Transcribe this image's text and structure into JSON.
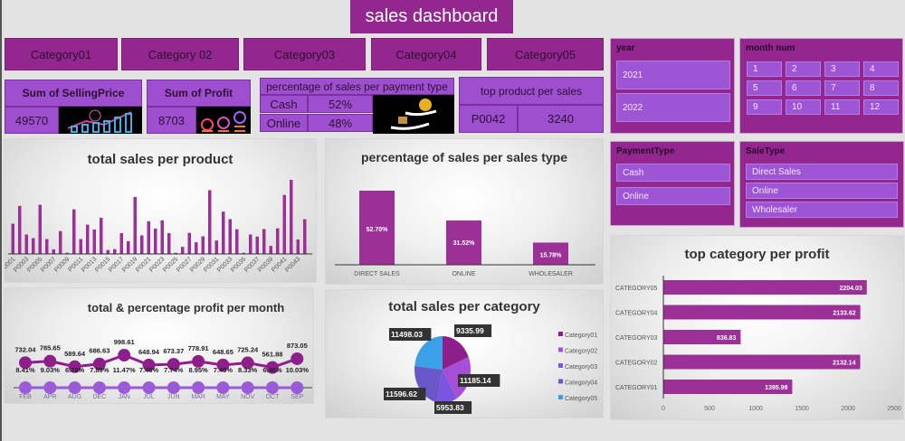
{
  "title": "sales dashboard",
  "categories": [
    "Category01",
    "Category 02",
    "Category03",
    "Category04",
    "Category05"
  ],
  "kpi": {
    "selling_label": "Sum of SellingPrice",
    "selling_value": "49570",
    "selling_icon": "growth-chart-icon",
    "profit_label": "Sum of Profit",
    "profit_value": "8703",
    "profit_icon": "coin-stacks-icon",
    "payment_label": "percentage of sales  per payment type",
    "payment_rows": [
      {
        "type": "Cash",
        "pct": "52%"
      },
      {
        "type": "Online",
        "pct": "48%"
      }
    ],
    "payment_icon": "hands-money-icon",
    "top_label": "top product per sales",
    "top_product": "P0042",
    "top_value": "3240"
  },
  "slicers": {
    "year": {
      "label": "year",
      "items": [
        "2021",
        "2022"
      ]
    },
    "month": {
      "label": "month num",
      "items": [
        "1",
        "2",
        "3",
        "4",
        "5",
        "6",
        "7",
        "8",
        "9",
        "10",
        "11",
        "12"
      ]
    },
    "payment": {
      "label": "PaymentType",
      "items": [
        "Cash",
        "Online"
      ]
    },
    "saletype": {
      "label": "SaleType",
      "items": [
        "Direct Sales",
        "Online",
        "Wholesaler"
      ]
    }
  },
  "colors": {
    "accent": "#93278f",
    "light": "#9d4fd0",
    "bar": "#9b3196"
  },
  "chart_data": [
    {
      "id": "product",
      "type": "bar",
      "title": "total sales per product",
      "categories": [
        "P0001",
        "P0002",
        "P0003",
        "P0004",
        "P0005",
        "P0006",
        "P0007",
        "P0008",
        "P0009",
        "P0010",
        "P0011",
        "P0012",
        "P0013",
        "P0014",
        "P0015",
        "P0016",
        "P0017",
        "P0018",
        "P0019",
        "P0020",
        "P0021",
        "P0022",
        "P0023",
        "P0024",
        "P0025",
        "P0026",
        "P0027",
        "P0028",
        "P0029",
        "P0030",
        "P0031",
        "P0032",
        "P0033",
        "P0034",
        "P0035",
        "P0036",
        "P0037",
        "P0038",
        "P0039",
        "P0040",
        "P0041",
        "P0042",
        "P0043",
        "P0044"
      ],
      "tick_labels": [
        "P0001",
        "P0003",
        "P0005",
        "P0007",
        "P0009",
        "P0011",
        "P0013",
        "P0015",
        "P0017",
        "P0019",
        "P0021",
        "P0023",
        "P0025",
        "P0027",
        "P0029",
        "P0031",
        "P0033",
        "P0035",
        "P0037",
        "P0039",
        "P0041",
        "P0043"
      ],
      "values": [
        1320,
        2100,
        850,
        690,
        2150,
        650,
        200,
        1000,
        50,
        1950,
        650,
        1280,
        1070,
        1580,
        170,
        210,
        910,
        560,
        2490,
        810,
        1430,
        1110,
        1470,
        910,
        50,
        310,
        920,
        510,
        770,
        2790,
        590,
        1850,
        1520,
        1080,
        50,
        850,
        760,
        1090,
        350,
        1120,
        2580,
        3240,
        630,
        1520
      ]
    },
    {
      "id": "saletype",
      "type": "bar",
      "title": "percentage of sales  per sales type",
      "categories": [
        "DIRECT SALES",
        "ONLINE",
        "WHOLESALER"
      ],
      "values": [
        52.7,
        31.52,
        15.78
      ],
      "labels": [
        "52.70%",
        "31.52%",
        "15.78%"
      ]
    },
    {
      "id": "catprofit",
      "type": "bar",
      "orientation": "horizontal",
      "title": "top category  per profit",
      "categories": [
        "CATEGORY05",
        "CATEGORY04",
        "CATEGORY03",
        "CATEGORY02",
        "CATEGORY01"
      ],
      "values": [
        2204.03,
        2133.62,
        836.83,
        2132.14,
        1395.99
      ],
      "labels": [
        "2204.03",
        "2133.62",
        "836.83",
        "2132.14",
        "1395.99"
      ],
      "xlim": [
        0,
        2500
      ],
      "xticks": [
        "0",
        "500",
        "1000",
        "1500",
        "2000",
        "2500"
      ]
    },
    {
      "id": "monthprofit",
      "type": "line",
      "title": "total & percentage  profit per month",
      "categories": [
        "FEB",
        "APR",
        "AUG",
        "DEC",
        "JAN",
        "JUL",
        "JUN",
        "MAR",
        "MAY",
        "NOV",
        "OCT",
        "SEP"
      ],
      "series": [
        {
          "values": [
            732.04,
            785.65,
            589.64,
            686.63,
            998.61,
            648.94,
            673.37,
            778.91,
            648.65,
            725.24,
            561.88,
            873.05
          ],
          "labels": [
            "732.04",
            "785.65",
            "589.64",
            "686.63",
            "998.61",
            "648.94",
            "673.37",
            "778.91",
            "648.65",
            "725.24",
            "561.88",
            "873.05"
          ],
          "color": "#8e1f8a"
        },
        {
          "values": [
            8.41,
            9.03,
            6.78,
            7.89,
            11.47,
            7.46,
            7.74,
            8.95,
            7.45,
            8.33,
            6.46,
            10.03
          ],
          "labels": [
            "8.41%",
            "9.03%",
            "6.78%",
            "7.89%",
            "11.47%",
            "7.46%",
            "7.74%",
            "8.95%",
            "7.45%",
            "8.33%",
            "6.46%",
            "10.03%"
          ],
          "color": "#9b5ad8"
        }
      ]
    },
    {
      "id": "catsales",
      "type": "pie",
      "title": "total sales per category",
      "categories": [
        "Category01",
        "Category02",
        "Category03",
        "Category04",
        "Category05"
      ],
      "values": [
        9335.99,
        11185.14,
        5953.83,
        11596.62,
        11498.03
      ],
      "labels": [
        "9335.99",
        "11185.14",
        "5953.83",
        "11596.62",
        "11498.03"
      ],
      "colors": [
        "#8e1f8a",
        "#a64fd6",
        "#7a55e0",
        "#6a58c8",
        "#3aa0e8"
      ],
      "legend": "right"
    }
  ]
}
